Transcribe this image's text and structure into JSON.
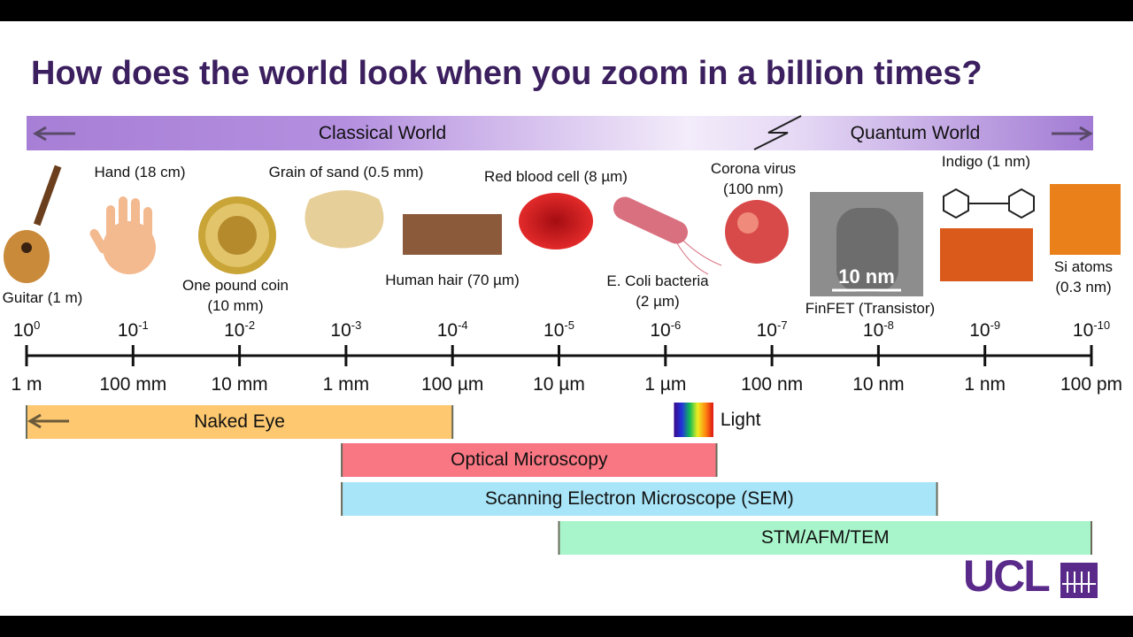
{
  "title": "How does the world look when you zoom in a billion times?",
  "banner": {
    "left": "Classical World",
    "right": "Quantum World"
  },
  "items": [
    {
      "label": [
        "Guitar (1 m)"
      ]
    },
    {
      "label": [
        "Hand (18 cm)"
      ]
    },
    {
      "label": [
        "One pound coin",
        "(10 mm)"
      ]
    },
    {
      "label": [
        "Grain of sand (0.5 mm)"
      ]
    },
    {
      "label": [
        "Human hair (70 µm)"
      ]
    },
    {
      "label": [
        "Red blood cell (8 µm)"
      ]
    },
    {
      "label": [
        "E. Coli bacteria",
        "(2 µm)"
      ]
    },
    {
      "label": [
        "Corona virus",
        "(100 nm)"
      ]
    },
    {
      "label": [
        "FinFET (Transistor)"
      ],
      "inset": "10 nm"
    },
    {
      "label": [
        "Indigo (1 nm)"
      ]
    },
    {
      "label": [
        "Si atoms",
        "(0.3 nm)"
      ]
    }
  ],
  "scale": {
    "base": "10",
    "ticks": [
      {
        "value": 0,
        "label": "1 m"
      },
      {
        "value": -1,
        "label": "100 mm"
      },
      {
        "value": -2,
        "label": "10 mm"
      },
      {
        "value": -3,
        "label": "1 mm"
      },
      {
        "value": -4,
        "label": "100 µm"
      },
      {
        "value": -5,
        "label": "10 µm"
      },
      {
        "value": -6,
        "label": "1 µm"
      },
      {
        "value": -7,
        "label": "100 nm"
      },
      {
        "value": -8,
        "label": "10 nm"
      },
      {
        "value": -9,
        "label": "1 nm"
      },
      {
        "value": -10,
        "label": "100 pm"
      }
    ]
  },
  "ranges": [
    {
      "label": "Naked Eye",
      "from": 0,
      "to": -4,
      "color": "#fdc870"
    },
    {
      "label": "Optical Microscopy",
      "from": -2.96,
      "to": -6.48,
      "color": "#f97783"
    },
    {
      "label": "Scanning Electron Microscope (SEM)",
      "from": -2.96,
      "to": -8.55,
      "color": "#a9e5f8"
    },
    {
      "label": "STM/AFM/TEM",
      "from": -5,
      "to": -10,
      "color": "#a9f5cb"
    }
  ],
  "light": {
    "label": "Light",
    "from": -6.08,
    "to": -6.45
  },
  "logo": "UCL"
}
